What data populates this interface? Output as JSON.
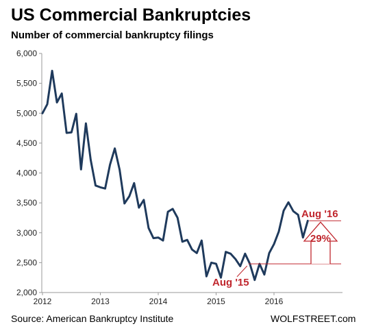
{
  "colors": {
    "line": "#1f3a5c",
    "annotation": "#c0262d",
    "grid": "#d9d9d9"
  },
  "chart_data": {
    "type": "line",
    "title": "US Commercial Bankruptcies",
    "subtitle": "Number of commercial bankruptcy filings",
    "xlabel": "",
    "ylabel": "",
    "xlim": [
      2012,
      2017
    ],
    "ylim": [
      2000,
      6000
    ],
    "x_ticks": [
      "2012",
      "2013",
      "2014",
      "2015",
      "2016"
    ],
    "y_ticks": [
      "2,000",
      "2,500",
      "3,000",
      "3,500",
      "4,000",
      "4,500",
      "5,000",
      "5,500",
      "6,000"
    ],
    "grid": false,
    "series": [
      {
        "x": [
          "2012-01",
          "2012-02",
          "2012-03",
          "2012-04",
          "2012-05",
          "2012-06",
          "2012-07",
          "2012-08",
          "2012-09",
          "2012-10",
          "2012-11",
          "2012-12",
          "2013-01",
          "2013-02",
          "2013-03",
          "2013-04",
          "2013-05",
          "2013-06",
          "2013-07",
          "2013-08",
          "2013-09",
          "2013-10",
          "2013-11",
          "2013-12",
          "2014-01",
          "2014-02",
          "2014-03",
          "2014-04",
          "2014-05",
          "2014-06",
          "2014-07",
          "2014-08",
          "2014-09",
          "2014-10",
          "2014-11",
          "2014-12",
          "2015-01",
          "2015-02",
          "2015-03",
          "2015-04",
          "2015-05",
          "2015-06",
          "2015-07",
          "2015-08",
          "2015-09",
          "2015-10",
          "2015-11",
          "2015-12",
          "2016-01",
          "2016-02",
          "2016-03",
          "2016-04",
          "2016-05",
          "2016-06",
          "2016-07",
          "2016-08"
        ],
        "values": [
          5000,
          5150,
          5710,
          5180,
          5330,
          4670,
          4680,
          4990,
          4060,
          4830,
          4220,
          3790,
          3760,
          3740,
          4140,
          4410,
          4050,
          3490,
          3610,
          3830,
          3420,
          3550,
          3080,
          2910,
          2920,
          2870,
          3350,
          3400,
          3250,
          2850,
          2880,
          2720,
          2660,
          2870,
          2270,
          2500,
          2480,
          2250,
          2680,
          2650,
          2560,
          2440,
          2650,
          2480,
          2210,
          2480,
          2300,
          2660,
          2810,
          3020,
          3370,
          3510,
          3360,
          3300,
          2920,
          3200
        ]
      }
    ],
    "annotations": [
      {
        "text": "Aug '15",
        "x": "2015-08",
        "y": 2480
      },
      {
        "text": "Aug '16",
        "x": "2016-08",
        "y": 3200
      },
      {
        "text": "29%",
        "from": 2480,
        "to": 3200
      }
    ]
  },
  "footer": {
    "source": "Source: American Bankruptcy Institute",
    "brand": "WOLFSTREET.com"
  }
}
